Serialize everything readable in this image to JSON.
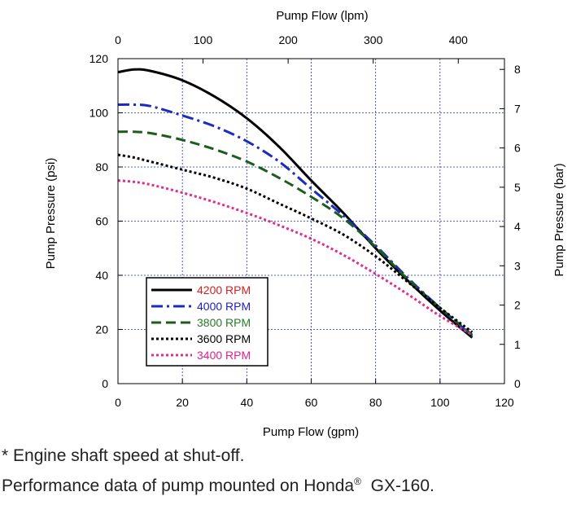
{
  "chart_data": {
    "type": "line",
    "xlabel_bottom": "Pump Flow (gpm)",
    "xlabel_top": "Pump Flow (lpm)",
    "ylabel_left": "Pump Pressure (psi)",
    "ylabel_right": "Pump Pressure (bar)",
    "xlim": [
      0,
      120
    ],
    "ylim": [
      0,
      120
    ],
    "x_ticks": [
      0,
      20,
      40,
      60,
      80,
      100,
      120
    ],
    "y_ticks": [
      0,
      20,
      40,
      60,
      80,
      100,
      120
    ],
    "top_ticks_lpm": [
      0,
      100,
      200,
      300,
      400
    ],
    "right_ticks_bar": [
      0,
      1,
      2,
      3,
      4,
      5,
      6,
      7,
      8
    ],
    "grid": true,
    "legend_position": "lower-left",
    "series": [
      {
        "name": "4200 RPM",
        "label_color": "#d42020",
        "color": "#000000",
        "dash": "solid",
        "x": [
          0,
          5,
          10,
          20,
          30,
          40,
          50,
          60,
          70,
          80,
          90,
          100,
          110
        ],
        "y": [
          115,
          116,
          115.5,
          112,
          106,
          98,
          87.5,
          75,
          63,
          50,
          38,
          27,
          17
        ]
      },
      {
        "name": "4000 RPM",
        "label_color": "#2020c0",
        "color": "#1a2bbf",
        "dash": "dashdot",
        "x": [
          0,
          5,
          10,
          20,
          30,
          40,
          50,
          60,
          70,
          80,
          90,
          100,
          110
        ],
        "y": [
          103,
          103,
          102.5,
          99,
          95,
          89.5,
          82,
          72,
          62,
          51,
          39,
          28,
          17.5
        ]
      },
      {
        "name": "3800 RPM",
        "label_color": "#2a7a2a",
        "color": "#1c5c1c",
        "dash": "dashed",
        "x": [
          0,
          5,
          10,
          20,
          30,
          40,
          50,
          60,
          70,
          80,
          90,
          100,
          110
        ],
        "y": [
          93,
          93,
          92.5,
          90,
          86.5,
          82,
          76,
          69,
          61,
          50.5,
          38.5,
          28,
          18
        ]
      },
      {
        "name": "3600 RPM",
        "label_color": "#000000",
        "color": "#000000",
        "dash": "dotted",
        "x": [
          0,
          5,
          10,
          20,
          30,
          40,
          50,
          60,
          70,
          80,
          90,
          100,
          110
        ],
        "y": [
          84.5,
          83.5,
          82,
          79,
          76,
          72,
          66.5,
          61,
          55,
          47,
          37.5,
          28,
          19
        ]
      },
      {
        "name": "3400 RPM",
        "label_color": "#e0208c",
        "color": "#e02e8e",
        "dash": "dotted",
        "x": [
          0,
          5,
          10,
          20,
          30,
          40,
          50,
          60,
          70,
          80,
          90,
          100,
          110
        ],
        "y": [
          75,
          74.5,
          73.5,
          70.5,
          67,
          63,
          58.5,
          53.5,
          47.5,
          40.5,
          33,
          25,
          18
        ]
      }
    ]
  },
  "footnotes": {
    "note1": "* Engine shaft speed at shut-off.",
    "note2_prefix": "Performance data of pump mounted on Honda",
    "note2_sup": "®",
    "note2_suffix": "  GX-160."
  }
}
